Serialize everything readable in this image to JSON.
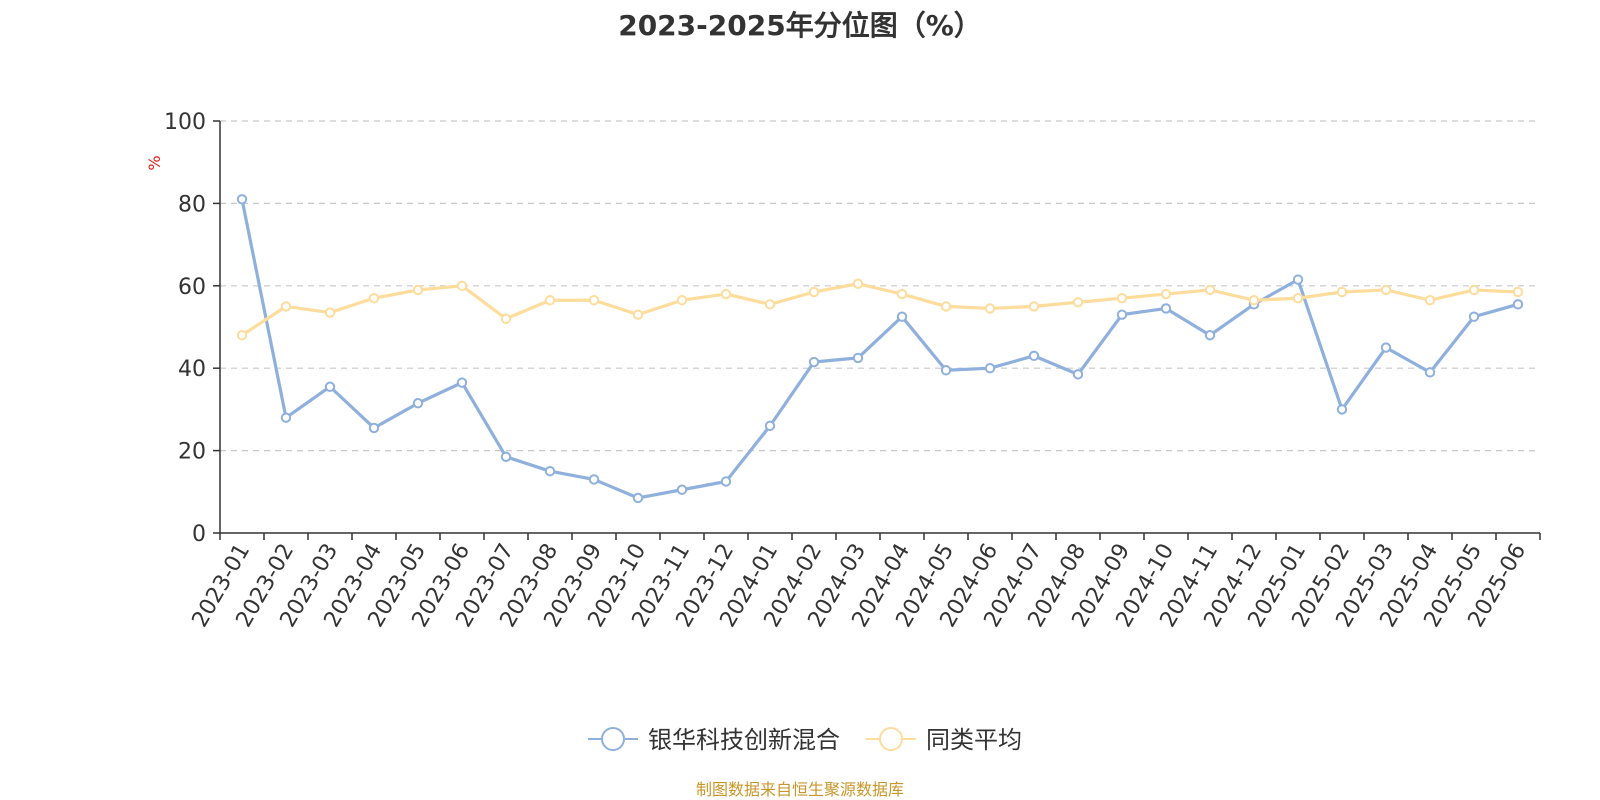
{
  "chart_data": {
    "type": "line",
    "title": "2023-2025年分位图（%）",
    "ylabel": "%",
    "xlabel": "",
    "ylim": [
      0,
      100
    ],
    "yticks": [
      0,
      20,
      40,
      60,
      80,
      100
    ],
    "grid": true,
    "legend_position": "bottom-center",
    "categories": [
      "2023-01",
      "2023-02",
      "2023-03",
      "2023-04",
      "2023-05",
      "2023-06",
      "2023-07",
      "2023-08",
      "2023-09",
      "2023-10",
      "2023-11",
      "2023-12",
      "2024-01",
      "2024-02",
      "2024-03",
      "2024-04",
      "2024-05",
      "2024-06",
      "2024-07",
      "2024-08",
      "2024-09",
      "2024-10",
      "2024-11",
      "2024-12",
      "2025-01",
      "2025-02",
      "2025-03",
      "2025-04",
      "2025-05",
      "2025-06"
    ],
    "series": [
      {
        "name": "银华科技创新混合",
        "color": "#8fb0dc",
        "values": [
          81,
          28,
          35.5,
          25.5,
          31.5,
          36.5,
          18.5,
          15,
          13,
          8.5,
          10.5,
          12.5,
          26,
          41.5,
          42.5,
          52.5,
          39.5,
          40,
          43,
          38.5,
          53,
          54.5,
          48,
          55.5,
          61.5,
          30,
          45,
          39,
          52.5,
          55.5
        ]
      },
      {
        "name": "同类平均",
        "color": "#fddc9c",
        "values": [
          48,
          55,
          53.5,
          57,
          59,
          60,
          52,
          56.5,
          56.5,
          53,
          56.5,
          58,
          55.5,
          58.5,
          60.5,
          58,
          55,
          54.5,
          55,
          56,
          57,
          58,
          59,
          56.5,
          57,
          58.5,
          59,
          56.5,
          59,
          58.5
        ]
      }
    ]
  },
  "source_note": "制图数据来自恒生聚源数据库"
}
